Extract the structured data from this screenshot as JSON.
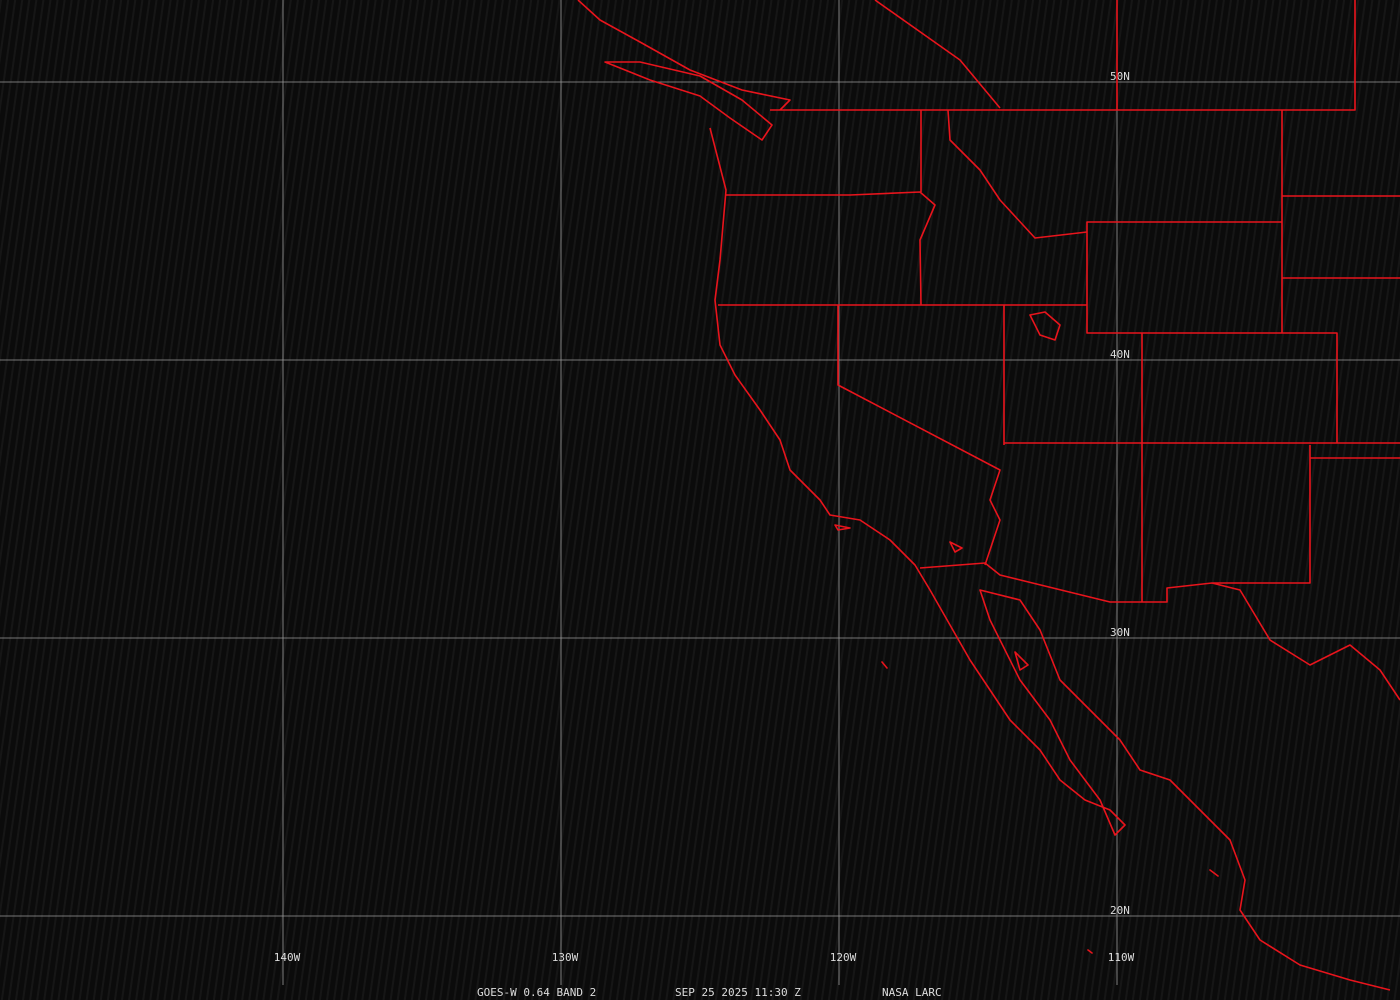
{
  "map": {
    "latitudes": [
      {
        "value": 50,
        "label": "50N"
      },
      {
        "value": 40,
        "label": "40N"
      },
      {
        "value": 30,
        "label": "30N"
      },
      {
        "value": 20,
        "label": "20N"
      }
    ],
    "longitudes": [
      {
        "value": -140,
        "label": "140W"
      },
      {
        "value": -130,
        "label": "130W"
      },
      {
        "value": -120,
        "label": "120W"
      },
      {
        "value": -110,
        "label": "110W"
      }
    ],
    "footer": [
      "GOES-W 0.64 BAND 2",
      "SEP 25 2025 11:30 Z",
      "NASA LARC"
    ]
  }
}
